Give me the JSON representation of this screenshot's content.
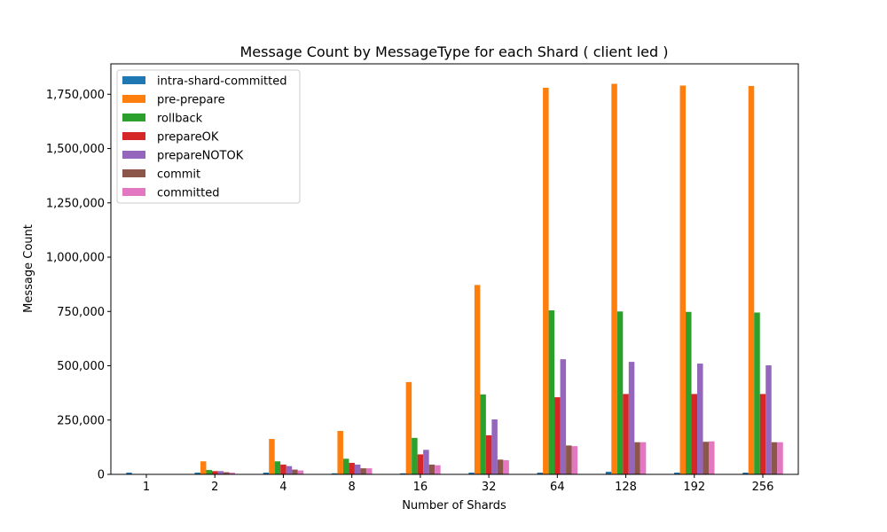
{
  "chart_data": {
    "type": "bar",
    "title": "Message Count by MessageType for each Shard ( client led )",
    "xlabel": "Number of Shards",
    "ylabel": "Message Count",
    "categories": [
      "1",
      "2",
      "4",
      "8",
      "16",
      "32",
      "64",
      "128",
      "192",
      "256"
    ],
    "ylim": [
      0,
      1890000
    ],
    "yticks": [
      0,
      250000,
      500000,
      750000,
      1000000,
      1250000,
      1500000,
      1750000
    ],
    "ytick_labels": [
      "0",
      "250,000",
      "500,000",
      "750,000",
      "1,000,000",
      "1,250,000",
      "1,500,000",
      "1,750,000"
    ],
    "grid": false,
    "legend": "top-left",
    "series": [
      {
        "name": "intra-shard-committed",
        "color": "#1f77b4",
        "values": [
          8000,
          8000,
          8000,
          5000,
          5000,
          8000,
          8000,
          12000,
          8000,
          8000
        ]
      },
      {
        "name": "pre-prepare",
        "color": "#ff7f0e",
        "values": [
          0,
          60000,
          163000,
          200000,
          425000,
          872000,
          1780000,
          1798000,
          1790000,
          1788000
        ]
      },
      {
        "name": "rollback",
        "color": "#2ca02c",
        "values": [
          0,
          20000,
          60000,
          72000,
          168000,
          368000,
          755000,
          750000,
          748000,
          745000
        ]
      },
      {
        "name": "prepareOK",
        "color": "#d62728",
        "values": [
          0,
          15000,
          45000,
          53000,
          92000,
          180000,
          355000,
          370000,
          370000,
          370000
        ]
      },
      {
        "name": "prepareNOTOK",
        "color": "#9467bd",
        "values": [
          0,
          15000,
          38000,
          45000,
          113000,
          253000,
          530000,
          518000,
          510000,
          502000
        ]
      },
      {
        "name": "commit",
        "color": "#8c564b",
        "values": [
          0,
          10000,
          22000,
          28000,
          45000,
          68000,
          133000,
          148000,
          150000,
          148000
        ]
      },
      {
        "name": "committed",
        "color": "#e377c2",
        "values": [
          0,
          8000,
          18000,
          28000,
          42000,
          65000,
          130000,
          148000,
          152000,
          148000
        ]
      }
    ]
  }
}
